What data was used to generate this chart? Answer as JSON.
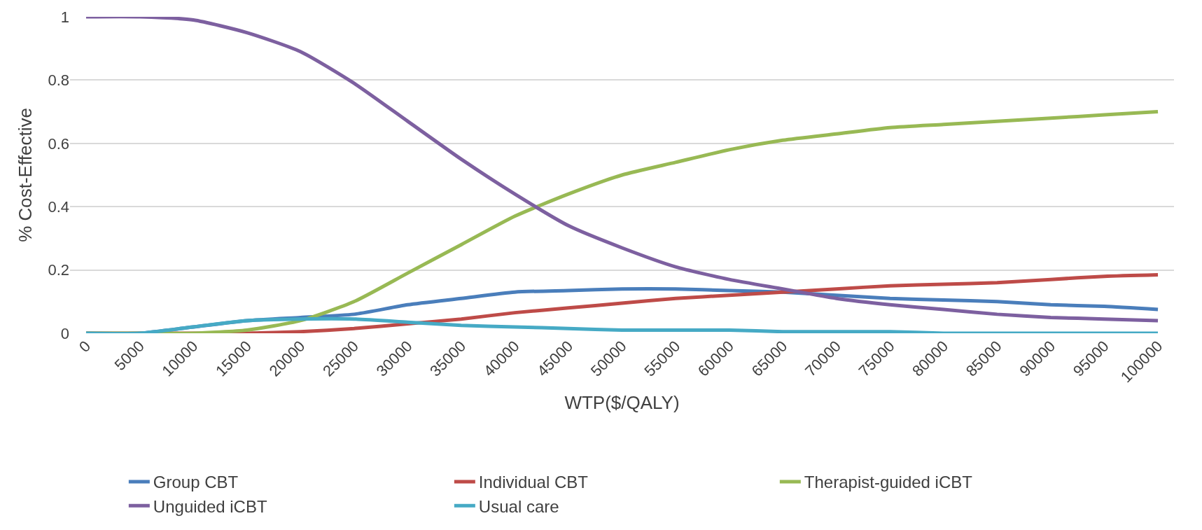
{
  "chart_data": {
    "type": "line",
    "xlabel": "WTP($/QALY)",
    "ylabel": "% Cost-Effective",
    "categories": [
      "0",
      "5000",
      "10000",
      "15000",
      "20000",
      "25000",
      "30000",
      "35000",
      "40000",
      "45000",
      "50000",
      "55000",
      "60000",
      "65000",
      "70000",
      "75000",
      "80000",
      "85000",
      "90000",
      "95000",
      "100000"
    ],
    "ylim": [
      0,
      1
    ],
    "yticks": [
      0,
      0.2,
      0.4,
      0.6,
      0.8,
      1
    ],
    "grid": "y",
    "legend": "bottom",
    "marker": "none",
    "line_style": "solid",
    "series": [
      {
        "name": "Group CBT",
        "color": "#4a7ebb",
        "values": [
          0,
          0,
          0.02,
          0.04,
          0.05,
          0.06,
          0.09,
          0.11,
          0.13,
          0.135,
          0.14,
          0.14,
          0.135,
          0.13,
          0.12,
          0.11,
          0.105,
          0.1,
          0.09,
          0.085,
          0.075
        ]
      },
      {
        "name": "Individual CBT",
        "color": "#be4b48",
        "values": [
          0,
          0,
          0,
          0,
          0.005,
          0.015,
          0.03,
          0.045,
          0.065,
          0.08,
          0.095,
          0.11,
          0.12,
          0.13,
          0.14,
          0.15,
          0.155,
          0.16,
          0.17,
          0.18,
          0.185
        ]
      },
      {
        "name": "Therapist-guided iCBT",
        "color": "#98b954",
        "values": [
          0,
          0,
          0,
          0.01,
          0.04,
          0.1,
          0.19,
          0.28,
          0.37,
          0.44,
          0.5,
          0.54,
          0.58,
          0.61,
          0.63,
          0.65,
          0.66,
          0.67,
          0.68,
          0.69,
          0.7
        ]
      },
      {
        "name": "Unguided iCBT",
        "color": "#7d60a0",
        "values": [
          1,
          1,
          0.99,
          0.95,
          0.89,
          0.79,
          0.67,
          0.55,
          0.44,
          0.34,
          0.27,
          0.21,
          0.17,
          0.14,
          0.11,
          0.09,
          0.075,
          0.06,
          0.05,
          0.045,
          0.04
        ]
      },
      {
        "name": "Usual care",
        "color": "#46aac5",
        "values": [
          0,
          0,
          0.02,
          0.04,
          0.045,
          0.045,
          0.035,
          0.025,
          0.02,
          0.015,
          0.01,
          0.01,
          0.01,
          0.005,
          0.005,
          0.005,
          0,
          0,
          0,
          0,
          0
        ]
      }
    ]
  }
}
